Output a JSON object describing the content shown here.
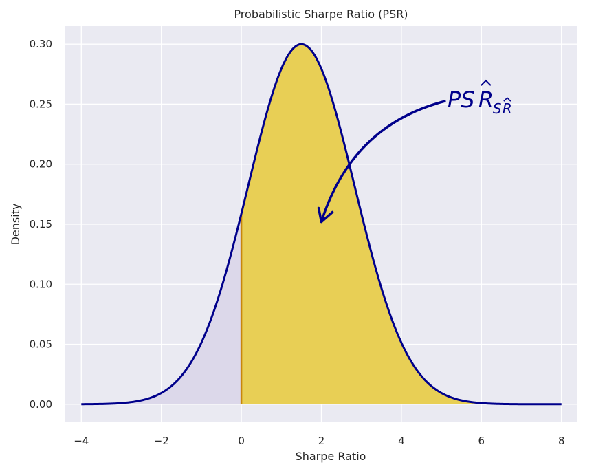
{
  "chart_data": {
    "type": "area",
    "title": "Probabilistic Sharpe Ratio (PSR)",
    "xlabel": "Sharpe Ratio",
    "ylabel": "Density",
    "xlim": [
      -4.4,
      8.4
    ],
    "ylim": [
      -0.015,
      0.315
    ],
    "xticks": [
      -4,
      -2,
      0,
      2,
      4,
      6,
      8
    ],
    "xtick_labels": [
      "−4",
      "−2",
      "0",
      "2",
      "4",
      "6",
      "8"
    ],
    "yticks": [
      0.0,
      0.05,
      0.1,
      0.15,
      0.2,
      0.25,
      0.3
    ],
    "ytick_labels": [
      "0.00",
      "0.05",
      "0.10",
      "0.15",
      "0.20",
      "0.25",
      "0.30"
    ],
    "grid": true,
    "series": [
      {
        "distribution": "normal",
        "mean": 1.5,
        "std": 1.33,
        "x_range": [
          -4,
          8
        ],
        "color": "#00008b",
        "shade_left": {
          "x_range": [
            -4,
            0
          ],
          "color": "#dcd8ea"
        },
        "shade_right": {
          "x_range": [
            0,
            8
          ],
          "color": "#e8cf55"
        }
      }
    ],
    "threshold": {
      "x": 0,
      "color": "#c8860b"
    },
    "annotation": {
      "main": "PS",
      "hat_main": "R",
      "sub": "S",
      "hat_sub": "R",
      "text_anchor": [
        5.15,
        0.253
      ],
      "arrow_target": [
        2.0,
        0.152
      ],
      "color": "#00008b"
    },
    "colors": {
      "plot_background": "#eaeaf2",
      "grid": "#ffffff",
      "text": "#262626"
    }
  }
}
